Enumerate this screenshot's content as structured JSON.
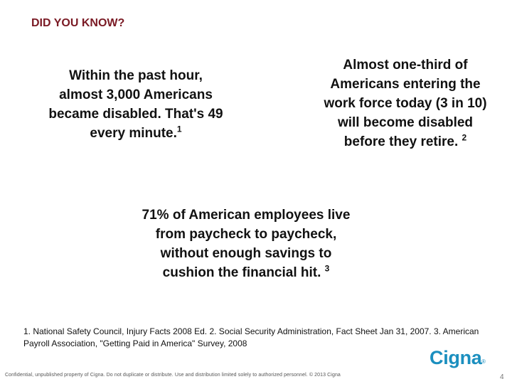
{
  "slide": {
    "title": "DID YOU KNOW?",
    "facts": [
      {
        "text": "Within the past hour, almost 3,000 Americans became disabled. That's 49 every minute.",
        "ref": "1"
      },
      {
        "text": "Almost one-third of Americans entering the work force today (3 in 10) will become disabled before they retire.",
        "ref": "2"
      },
      {
        "text": "71% of American employees live from paycheck to paycheck, without enough savings to cushion the financial hit.",
        "ref": "3"
      }
    ],
    "references": "1. National Safety Council, Injury Facts 2008 Ed. 2. Social Security Administration, Fact Sheet Jan 31, 2007. 3. American Payroll Association, \"Getting Paid in America\" Survey, 2008",
    "footer": "Confidential, unpublished property of Cigna. Do not duplicate or distribute. Use and distribution limited solely to authorized personnel. © 2013 Cigna",
    "logo_text": "Cigna",
    "logo_mark": "®",
    "page_number": "4"
  },
  "colors": {
    "title": "#7a1a24",
    "brand": "#1b8fbf"
  }
}
